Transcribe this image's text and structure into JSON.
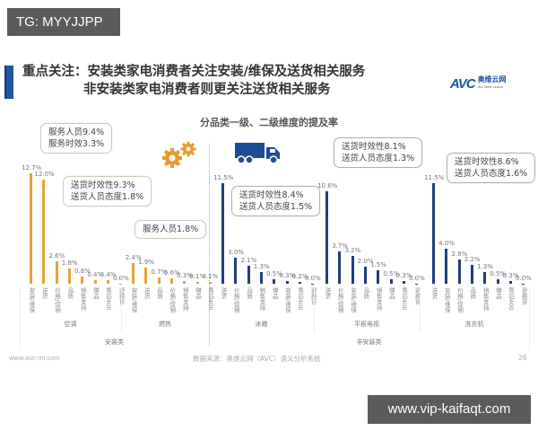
{
  "watermarks": {
    "top": "TG: MYYJJPP",
    "bottom": "www.vip-kaifaqt.com"
  },
  "header": {
    "title_line1": "重点关注：安装类家电消费者关注安装/维保及送货相关服务",
    "title_line2": "非安装类家电消费者则更关注送货相关服务",
    "logo_main": "AVC",
    "logo_cn": "奥维云网",
    "logo_en": "ALL VIEW CLOUD"
  },
  "footer": {
    "website": "www.avc-mr.com",
    "source": "数据来源：奥维云网（AVC）语义分析系统",
    "page": "26"
  },
  "colors": {
    "installation": "#e3a43a",
    "non_installation": "#1f3f78",
    "title_accent": "#1e56a0"
  },
  "icons": {
    "gears": "gear-icon",
    "truck": "truck-icon"
  },
  "callouts": [
    {
      "line1": "服务人员9.4%",
      "line2": "服务时效3.3%"
    },
    {
      "line1": "送货时效性9.3%",
      "line2": "送货人员态度1.8%"
    },
    {
      "line1": "服务人员1.8%",
      "line2": ""
    },
    {
      "line1": "送货时效性8.4%",
      "line2": "送货人员态度1.5%"
    },
    {
      "line1": "送货时效性8.1%",
      "line2": "送货人员态度1.3%"
    },
    {
      "line1": "送货时效性8.6%",
      "line2": "送货人员态度1.6%"
    }
  ],
  "chart_data": {
    "type": "bar",
    "title": "分品类一级、二级维度的提及率",
    "xlabel": "",
    "ylabel": "",
    "grid": false,
    "super_groups": [
      {
        "name": "安装类",
        "groups": [
          "空调",
          "燃热"
        ]
      },
      {
        "name": "非安装类",
        "groups": [
          "冰箱",
          "平板电视",
          "洗衣机"
        ]
      }
    ],
    "groups": [
      {
        "name": "空调",
        "super_group": "安装类",
        "categories": [
          "安装/维保",
          "送货",
          "价格/促销",
          "品质",
          "销售支持",
          "赠品",
          "售后400",
          "退换货"
        ],
        "values": [
          12.7,
          12.0,
          2.6,
          1.8,
          0.8,
          0.4,
          0.4,
          0.0
        ],
        "labels": [
          "12.7%",
          "12.0%",
          "2.6%",
          "1.8%",
          "0.8%",
          "0.4%",
          "0.4%",
          "0.0%"
        ]
      },
      {
        "name": "燃热",
        "super_group": "安装类",
        "categories": [
          "安装/维保",
          "送货",
          "品质",
          "价格/促销",
          "销售支持",
          "赠品",
          "售后400"
        ],
        "values": [
          2.4,
          1.9,
          0.7,
          0.6,
          0.3,
          0.1,
          0.1
        ],
        "labels": [
          "2.4%",
          "1.9%",
          "0.7%",
          "0.6%",
          "0.3%",
          "0.1%",
          "0.1%"
        ]
      },
      {
        "name": "冰箱",
        "super_group": "非安装类",
        "categories": [
          "送货",
          "价格/促销",
          "品质",
          "销售支持",
          "赠品",
          "安装/维保",
          "售后400",
          "退换货"
        ],
        "values": [
          11.5,
          3.0,
          2.1,
          1.3,
          0.5,
          0.3,
          0.2,
          0.0
        ],
        "labels": [
          "11.5%",
          "3.0%",
          "2.1%",
          "1.3%",
          "0.5%",
          "0.3%",
          "0.2%",
          "0.0%"
        ]
      },
      {
        "name": "平板电视",
        "super_group": "非安装类",
        "categories": [
          "送货",
          "价格/促销",
          "安装/维保",
          "品质",
          "销售支持",
          "赠品",
          "售后400",
          "退换货"
        ],
        "values": [
          10.6,
          3.7,
          3.2,
          2.0,
          1.5,
          0.5,
          0.3,
          0.0
        ],
        "labels": [
          "10.6%",
          "3.7%",
          "3.2%",
          "2.0%",
          "1.5%",
          "0.5%",
          "0.3%",
          "0.0%"
        ]
      },
      {
        "name": "洗衣机",
        "super_group": "非安装类",
        "categories": [
          "送货",
          "安装/维保",
          "价格/促销",
          "品质",
          "销售支持",
          "赠品",
          "售后400",
          "退换货"
        ],
        "values": [
          11.5,
          4.0,
          2.8,
          2.2,
          1.3,
          0.5,
          0.3,
          0.0
        ],
        "labels": [
          "11.5%",
          "4.0%",
          "2.8%",
          "2.2%",
          "1.3%",
          "0.5%",
          "0.3%",
          "0.0%"
        ]
      }
    ]
  }
}
